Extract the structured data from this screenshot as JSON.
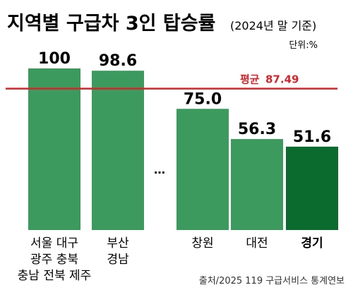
{
  "title": "지역별 구급차 3인 탑승률",
  "subtitle": "(2024년 말 기준)",
  "unit": "단위:%",
  "average": {
    "label": "평균",
    "value": "87.49"
  },
  "gap_marker": "…",
  "source": "출처/2025 119 구급서비스 통계연보",
  "colors": {
    "bar": "#3c9a5f",
    "bar_highlight": "#0b6a2e",
    "average_line": "#d5252b",
    "average_text": "#d5252b"
  },
  "chart_data": {
    "type": "bar",
    "title": "지역별 구급차 3인 탑승률",
    "subtitle": "(2024년 말 기준)",
    "unit": "%",
    "ylim": [
      0,
      100
    ],
    "grid": false,
    "average": 87.49,
    "categories": [
      [
        "서울 대구",
        "광주 충북",
        "충남 전북 제주"
      ],
      [
        "부산",
        "경남"
      ],
      [
        "창원"
      ],
      [
        "대전"
      ],
      [
        "경기"
      ]
    ],
    "values": [
      100,
      98.6,
      75.0,
      56.3,
      51.6
    ],
    "value_labels": [
      "100",
      "98.6",
      "75.0",
      "56.3",
      "51.6"
    ],
    "highlight_index": 4
  }
}
